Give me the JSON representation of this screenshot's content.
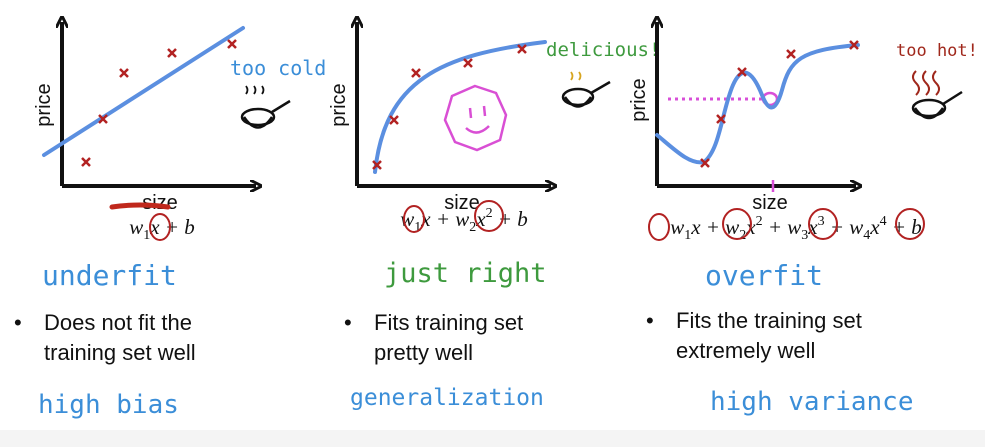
{
  "colors": {
    "axis": "#111111",
    "fit_curve": "#5b8fe0",
    "data_point": "#b22222",
    "handwriting_blue": "#3b8ed8",
    "handwriting_green": "#3e9a3e",
    "handwriting_red": "#a0281c",
    "smiley": "#d94fd4",
    "highlight_dotted": "#d84fd8",
    "underline_red": "#c0281c"
  },
  "panels": [
    {
      "xlabel": "size",
      "ylabel": "price",
      "equation": "w1x + b",
      "annotation": "too cold",
      "fit_word": "underfit",
      "bullet": [
        "Does not fit the",
        "training set well"
      ],
      "verdict": "high bias"
    },
    {
      "xlabel": "size",
      "ylabel": "price",
      "equation": "w1x + w2x2 + b",
      "annotation": "delicious!",
      "fit_word": "just right",
      "bullet": [
        "Fits training set",
        "pretty well"
      ],
      "verdict": "generalization"
    },
    {
      "xlabel": "size",
      "ylabel": "price",
      "equation": "w1x + w2x2 + w3x3 + w4x4 + b",
      "annotation": "too hot!",
      "fit_word": "overfit",
      "bullet": [
        "Fits the training set",
        "extremely well"
      ],
      "verdict": "high variance"
    }
  ],
  "bullet_symbol": "•",
  "icons": [
    "frying-pan-icon",
    "smiley-face-icon",
    "steam-icon"
  ]
}
